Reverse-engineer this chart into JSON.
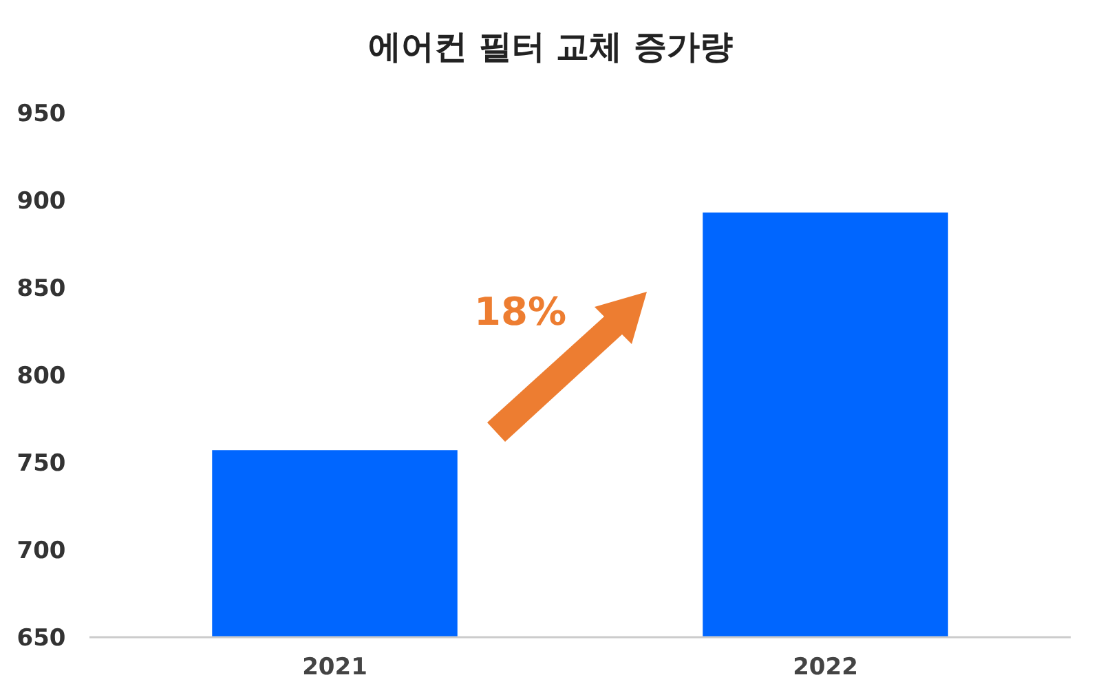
{
  "chart_data": {
    "type": "bar",
    "title": "에어컨 필터 교체 증가량",
    "categories": [
      "2021",
      "2022"
    ],
    "values": [
      757,
      893
    ],
    "color": "#0066ff",
    "ylim": [
      650,
      950
    ],
    "yticks": [
      650,
      700,
      750,
      800,
      850,
      900,
      950
    ],
    "grid": false,
    "annotations": [
      "18%"
    ]
  }
}
